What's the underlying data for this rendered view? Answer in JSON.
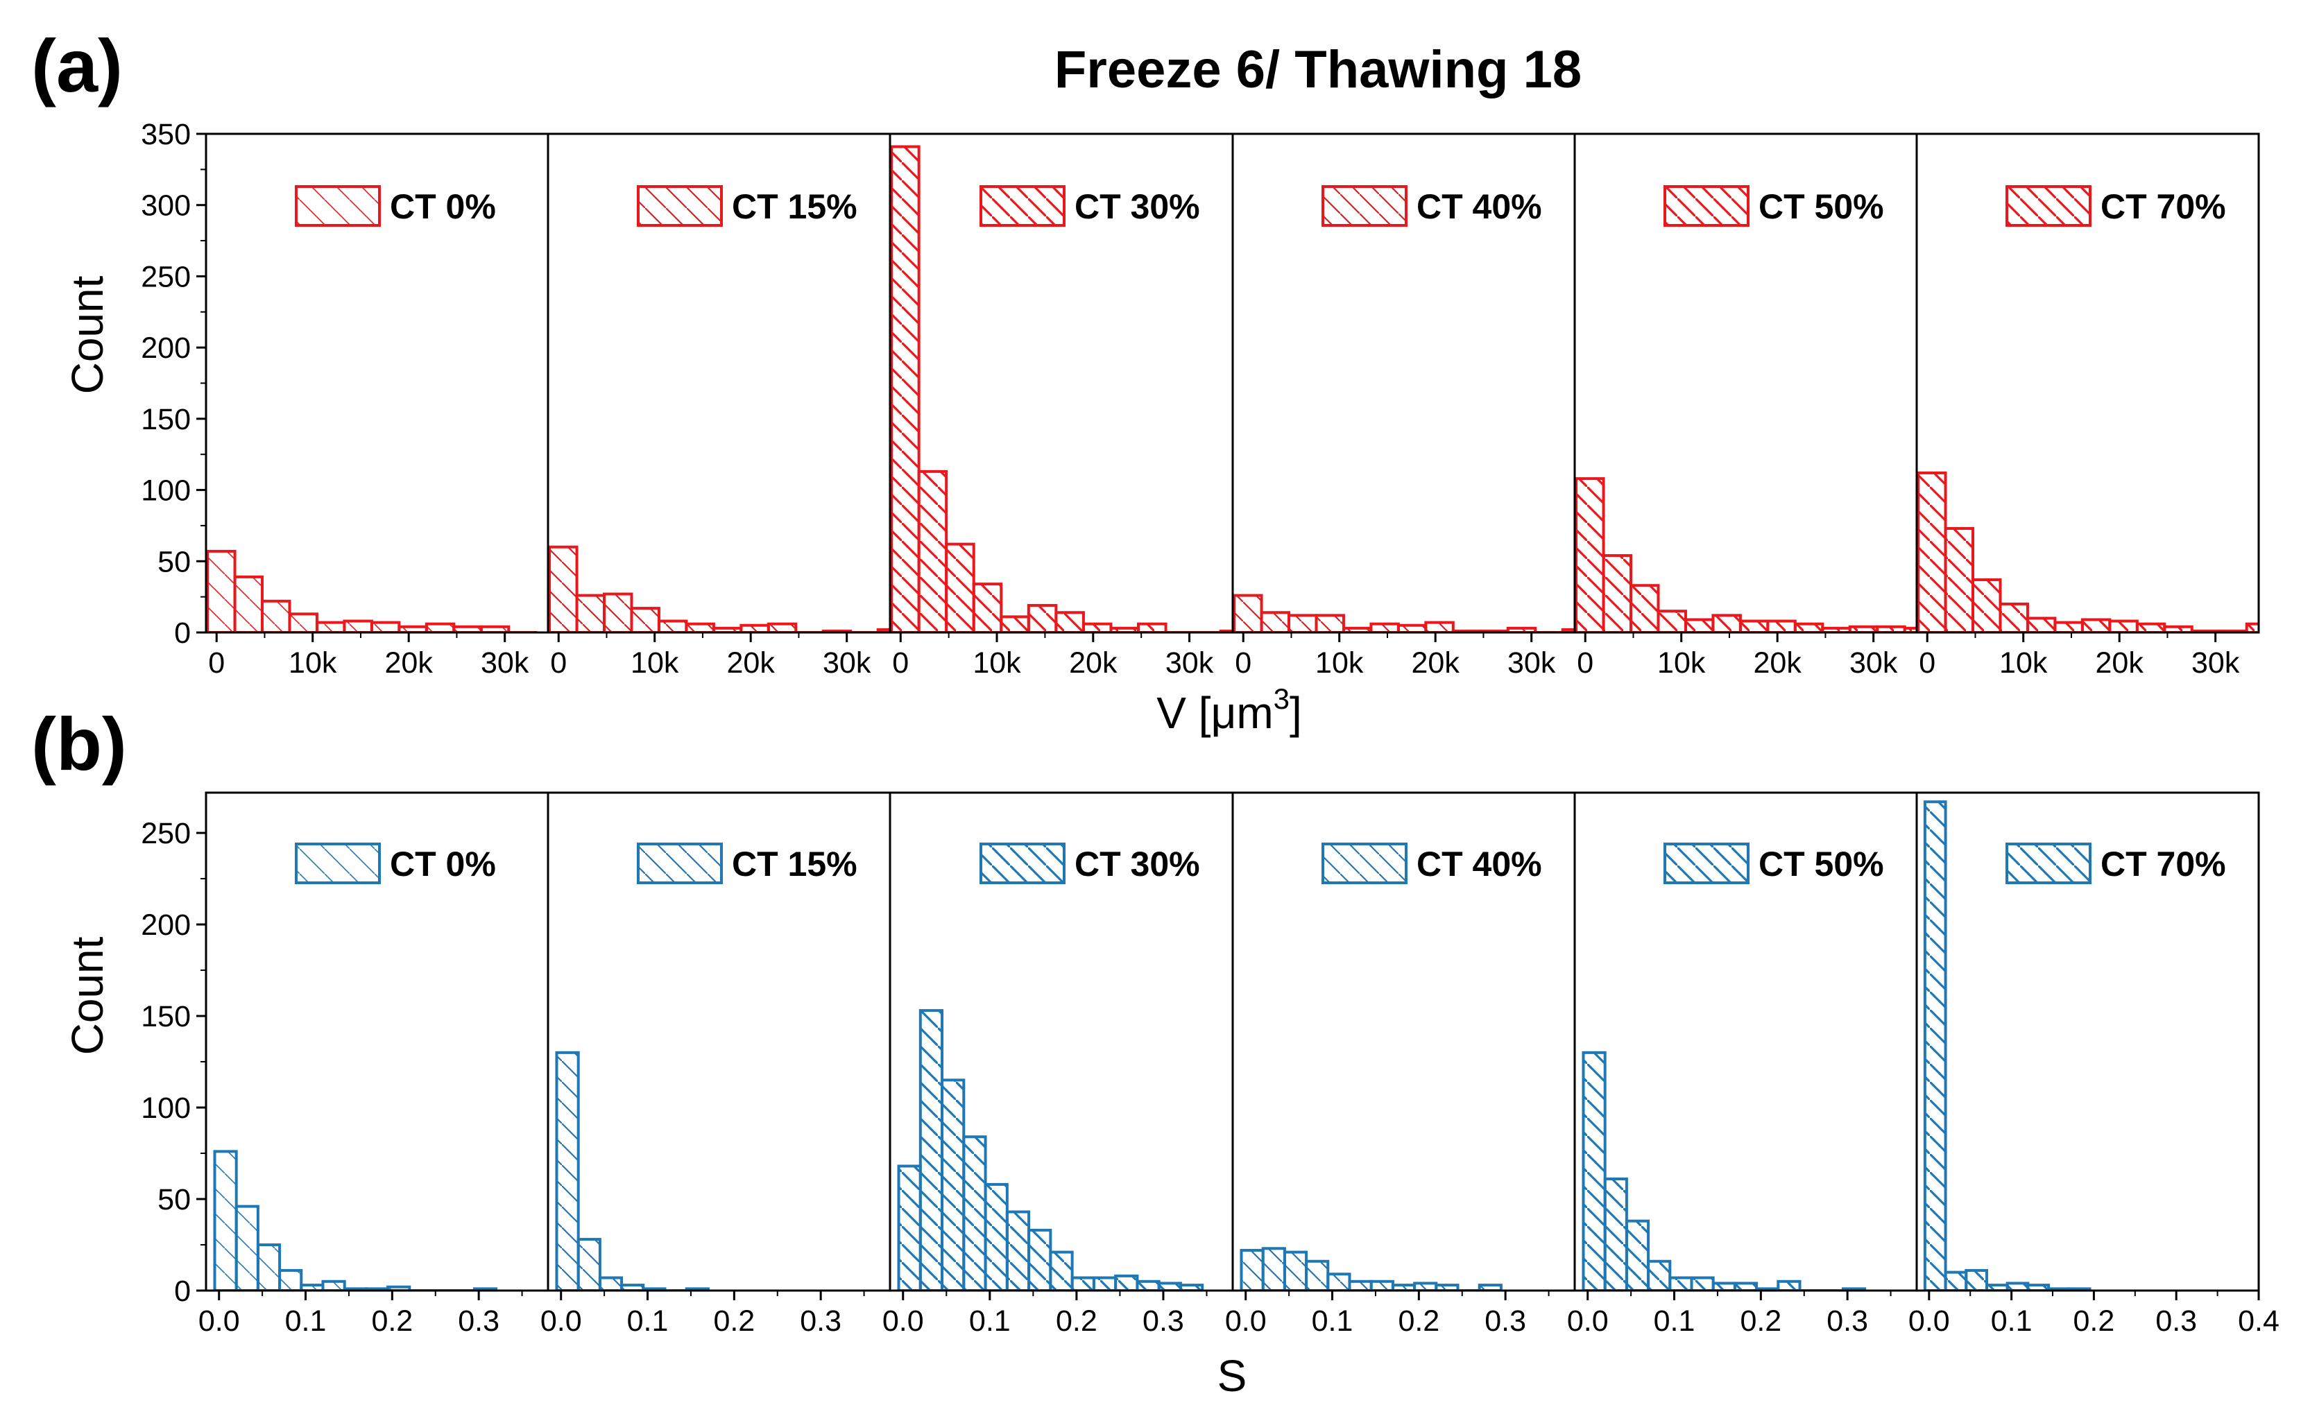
{
  "figure": {
    "title": "Freeze 6/ Thawing 18",
    "panel_a_label": "(a)",
    "panel_b_label": "(b)",
    "colors": {
      "panel_a": "#e8181c",
      "panel_b": "#1f77b4"
    }
  },
  "chart_data": [
    {
      "type": "bar",
      "subtype": "histogram",
      "panel": "(a)",
      "ylabel": "Count",
      "xlabel": "V [μm",
      "xlabel_superscript": "3",
      "xlabel_suffix": "]",
      "ylim": [
        0,
        350
      ],
      "yticks": [
        0,
        50,
        100,
        150,
        200,
        250,
        300,
        350
      ],
      "xlim": [
        -1100,
        34500
      ],
      "xticks": [
        0,
        10000,
        20000,
        30000
      ],
      "xtick_labels": [
        "0",
        "10k",
        "20k",
        "30k"
      ],
      "bin_width": 2850,
      "bin_start": -950,
      "legend_position": "top-right",
      "series": [
        {
          "name": "CT 0%",
          "values": [
            57,
            39,
            22,
            13,
            7,
            8,
            7,
            4,
            6,
            4,
            4,
            0
          ]
        },
        {
          "name": "CT 15%",
          "values": [
            60,
            26,
            27,
            17,
            8,
            6,
            3,
            5,
            6,
            0,
            1,
            0,
            2
          ]
        },
        {
          "name": "CT 30%",
          "values": [
            341,
            113,
            62,
            34,
            11,
            19,
            14,
            6,
            3,
            6,
            0,
            0,
            1
          ]
        },
        {
          "name": "CT 40%",
          "values": [
            26,
            14,
            12,
            12,
            3,
            6,
            5,
            7,
            1,
            1,
            3,
            0,
            2
          ]
        },
        {
          "name": "CT 50%",
          "values": [
            108,
            54,
            33,
            15,
            9,
            12,
            8,
            8,
            6,
            3,
            4,
            4,
            3
          ]
        },
        {
          "name": "CT 70%",
          "values": [
            112,
            73,
            37,
            20,
            10,
            7,
            9,
            8,
            6,
            4,
            1,
            1,
            6
          ]
        }
      ]
    },
    {
      "type": "bar",
      "subtype": "histogram",
      "panel": "(b)",
      "ylabel": "Count",
      "xlabel": "S",
      "ylim": [
        0,
        272
      ],
      "yticks": [
        0,
        50,
        100,
        150,
        200,
        250
      ],
      "xlim": [
        -0.015,
        0.38
      ],
      "xticks": [
        0.0,
        0.1,
        0.2,
        0.3
      ],
      "xtick_labels": [
        "0.0",
        "0.1",
        "0.2",
        "0.3"
      ],
      "last_panel_xlim": [
        -0.015,
        0.4
      ],
      "last_panel_xticks": [
        0.0,
        0.1,
        0.2,
        0.3,
        0.4
      ],
      "last_panel_xtick_labels": [
        "0.0",
        "0.1",
        "0.2",
        "0.3",
        "0.4"
      ],
      "bin_width": 0.025,
      "bin_start": -0.005,
      "legend_position": "top-right",
      "series": [
        {
          "name": "CT 0%",
          "values": [
            76,
            46,
            25,
            11,
            3,
            5,
            1,
            1,
            2,
            0,
            0,
            0,
            1
          ]
        },
        {
          "name": "CT 15%",
          "values": [
            130,
            28,
            7,
            3,
            1,
            0,
            1
          ]
        },
        {
          "name": "CT 30%",
          "values": [
            68,
            153,
            115,
            84,
            58,
            43,
            33,
            21,
            7,
            7,
            8,
            5,
            4,
            3
          ]
        },
        {
          "name": "CT 40%",
          "values": [
            22,
            23,
            21,
            16,
            9,
            5,
            5,
            3,
            4,
            3,
            0,
            3
          ]
        },
        {
          "name": "CT 50%",
          "values": [
            130,
            61,
            38,
            16,
            7,
            7,
            4,
            4,
            1,
            5,
            0,
            0,
            1
          ]
        },
        {
          "name": "CT 70%",
          "values": [
            267,
            10,
            11,
            3,
            4,
            3,
            1,
            1
          ]
        }
      ]
    }
  ]
}
